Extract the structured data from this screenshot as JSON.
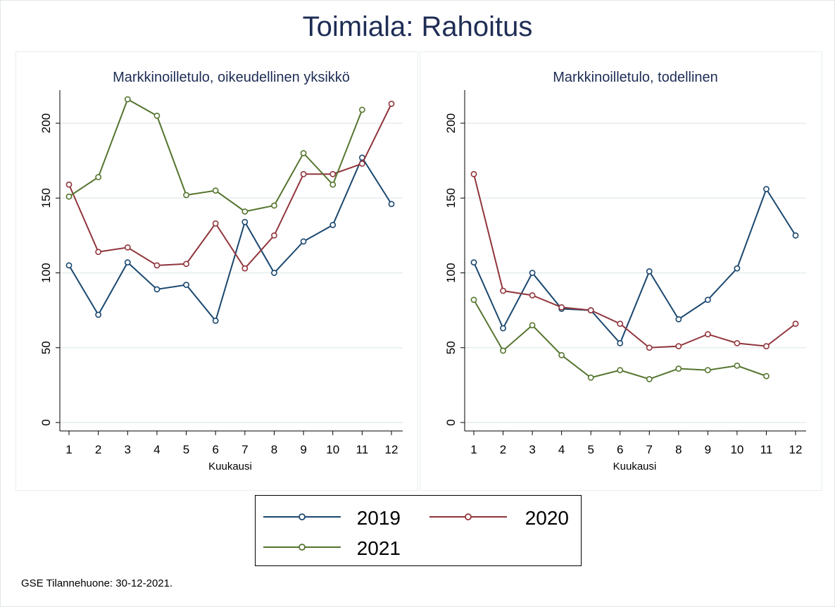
{
  "title": "Toimiala: Rahoitus",
  "footer": "GSE Tilannehuone: 30-12-2021.",
  "legend": [
    {
      "label": "2019",
      "color": "#1a476f"
    },
    {
      "label": "2020",
      "color": "#90353b"
    },
    {
      "label": "2021",
      "color": "#55752f"
    }
  ],
  "chart_data": [
    {
      "type": "line",
      "title": "Markkinoilletulo, oikeudellinen yksikkö",
      "xlabel": "Kuukausi",
      "ylabel": "",
      "x": [
        1,
        2,
        3,
        4,
        5,
        6,
        7,
        8,
        9,
        10,
        11,
        12
      ],
      "yticks": [
        0,
        50,
        100,
        150,
        200
      ],
      "ylim": [
        0,
        225
      ],
      "grid": true,
      "series": [
        {
          "name": "2019",
          "values": [
            105,
            72,
            107,
            89,
            92,
            68,
            134,
            100,
            121,
            132,
            177,
            146
          ]
        },
        {
          "name": "2020",
          "values": [
            159,
            114,
            117,
            105,
            106,
            133,
            103,
            125,
            166,
            166,
            173,
            213
          ]
        },
        {
          "name": "2021",
          "values": [
            151,
            164,
            216,
            205,
            152,
            155,
            141,
            145,
            180,
            159,
            209,
            null
          ]
        }
      ]
    },
    {
      "type": "line",
      "title": "Markkinoilletulo, todellinen",
      "xlabel": "Kuukausi",
      "ylabel": "",
      "x": [
        1,
        2,
        3,
        4,
        5,
        6,
        7,
        8,
        9,
        10,
        11,
        12
      ],
      "yticks": [
        0,
        50,
        100,
        150,
        200
      ],
      "ylim": [
        0,
        225
      ],
      "grid": true,
      "series": [
        {
          "name": "2019",
          "values": [
            107,
            63,
            100,
            76,
            75,
            53,
            101,
            69,
            82,
            103,
            156,
            125
          ]
        },
        {
          "name": "2020",
          "values": [
            166,
            88,
            85,
            77,
            75,
            66,
            50,
            51,
            59,
            53,
            51,
            66
          ]
        },
        {
          "name": "2021",
          "values": [
            82,
            48,
            65,
            45,
            30,
            35,
            29,
            36,
            35,
            38,
            31,
            null
          ]
        }
      ]
    }
  ]
}
